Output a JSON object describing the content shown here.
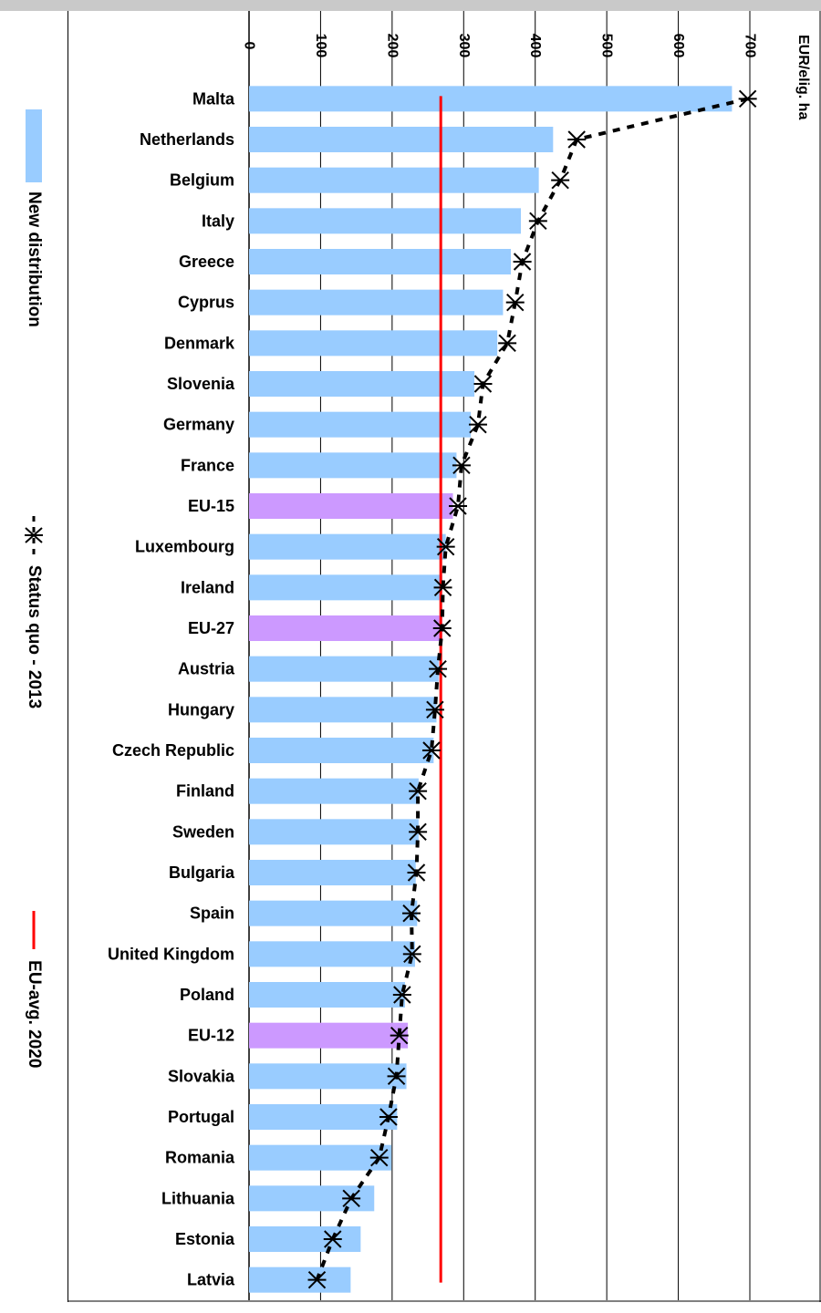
{
  "chart_data": {
    "type": "bar",
    "orientation": "horizontal",
    "y_axis_label": "EUR/elig. ha",
    "xlim": [
      0,
      700
    ],
    "ticks": [
      0,
      100,
      200,
      300,
      400,
      500,
      600,
      700
    ],
    "grid": true,
    "legend_placement": "left",
    "categories": [
      "Malta",
      "Netherlands",
      "Belgium",
      "Italy",
      "Greece",
      "Cyprus",
      "Denmark",
      "Slovenia",
      "Germany",
      "France",
      "EU-15",
      "Luxembourg",
      "Ireland",
      "EU-27",
      "Austria",
      "Hungary",
      "Czech Republic",
      "Finland",
      "Sweden",
      "Bulgaria",
      "Spain",
      "United Kingdom",
      "Poland",
      "EU-12",
      "Slovakia",
      "Portugal",
      "Romania",
      "Lithuania",
      "Estonia",
      "Latvia"
    ],
    "series": [
      {
        "name": "New distribution",
        "type": "bar",
        "color": "#99ccff",
        "highlight_color": "#cc99ff",
        "highlight_categories": [
          "EU-15",
          "EU-27",
          "EU-12"
        ],
        "values": [
          675,
          425,
          405,
          380,
          366,
          355,
          347,
          315,
          310,
          290,
          285,
          275,
          270,
          270,
          265,
          262,
          258,
          237,
          237,
          233,
          235,
          232,
          218,
          222,
          220,
          207,
          199,
          175,
          156,
          142
        ]
      },
      {
        "name": "Status quo - 2013",
        "type": "line",
        "color": "#000000",
        "values": [
          697,
          458,
          435,
          404,
          382,
          372,
          361,
          327,
          320,
          297,
          292,
          275,
          271,
          270,
          264,
          260,
          255,
          236,
          236,
          234,
          227,
          228,
          214,
          210,
          206,
          195,
          182,
          143,
          117,
          95
        ]
      },
      {
        "name": "EU-avg. 2020",
        "type": "reference",
        "color": "#ff0000",
        "value": 268
      }
    ]
  }
}
